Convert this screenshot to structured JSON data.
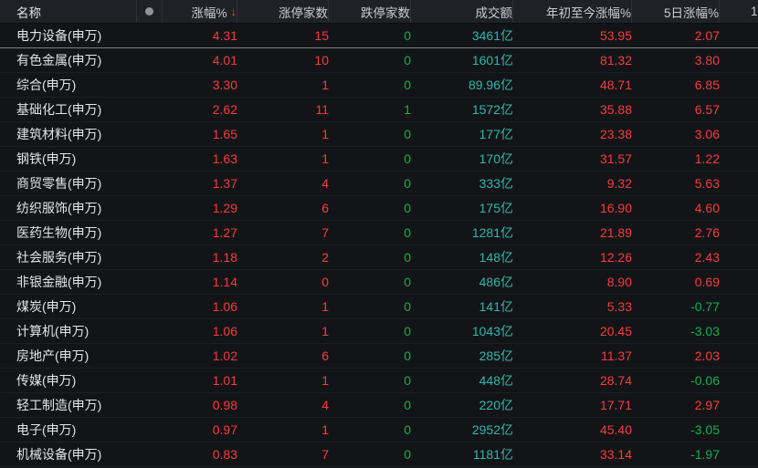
{
  "colors": {
    "up_red": "#f53c3d",
    "down_green": "#0db24d",
    "turnover_teal": "#2db8ad",
    "sort_arrow_orange": "#e0502e",
    "header_bg": "#1f2127",
    "row_bg": "#131417"
  },
  "table": {
    "columns": [
      {
        "key": "name",
        "label": "名称"
      },
      {
        "key": "dot",
        "label": ""
      },
      {
        "key": "change",
        "label": "涨幅%",
        "sort_arrow": "↓",
        "sorted": "desc"
      },
      {
        "key": "limit_up",
        "label": "涨停家数"
      },
      {
        "key": "limit_down",
        "label": "跌停家数"
      },
      {
        "key": "turnover",
        "label": "成交额"
      },
      {
        "key": "ytd",
        "label": "年初至今涨幅%"
      },
      {
        "key": "d5",
        "label": "5日涨幅%"
      },
      {
        "key": "clipped",
        "label": "1"
      }
    ],
    "rows": [
      {
        "name": "电力设备(申万)",
        "change": "4.31",
        "limit_up": "15",
        "limit_down": "0",
        "turnover": "3461亿",
        "ytd": "53.95",
        "d5": "2.07",
        "selected": true
      },
      {
        "name": "有色金属(申万)",
        "change": "4.01",
        "limit_up": "10",
        "limit_down": "0",
        "turnover": "1601亿",
        "ytd": "81.32",
        "d5": "3.80"
      },
      {
        "name": "综合(申万)",
        "change": "3.30",
        "limit_up": "1",
        "limit_down": "0",
        "turnover": "89.96亿",
        "ytd": "48.71",
        "d5": "6.85"
      },
      {
        "name": "基础化工(申万)",
        "change": "2.62",
        "limit_up": "11",
        "limit_down": "1",
        "turnover": "1572亿",
        "ytd": "35.88",
        "d5": "6.57"
      },
      {
        "name": "建筑材料(申万)",
        "change": "1.65",
        "limit_up": "1",
        "limit_down": "0",
        "turnover": "177亿",
        "ytd": "23.38",
        "d5": "3.06"
      },
      {
        "name": "钢铁(申万)",
        "change": "1.63",
        "limit_up": "1",
        "limit_down": "0",
        "turnover": "170亿",
        "ytd": "31.57",
        "d5": "1.22"
      },
      {
        "name": "商贸零售(申万)",
        "change": "1.37",
        "limit_up": "4",
        "limit_down": "0",
        "turnover": "333亿",
        "ytd": "9.32",
        "d5": "5.63"
      },
      {
        "name": "纺织服饰(申万)",
        "change": "1.29",
        "limit_up": "6",
        "limit_down": "0",
        "turnover": "175亿",
        "ytd": "16.90",
        "d5": "4.60"
      },
      {
        "name": "医药生物(申万)",
        "change": "1.27",
        "limit_up": "7",
        "limit_down": "0",
        "turnover": "1281亿",
        "ytd": "21.89",
        "d5": "2.76"
      },
      {
        "name": "社会服务(申万)",
        "change": "1.18",
        "limit_up": "2",
        "limit_down": "0",
        "turnover": "148亿",
        "ytd": "12.26",
        "d5": "2.43"
      },
      {
        "name": "非银金融(申万)",
        "change": "1.14",
        "limit_up": "0",
        "limit_down": "0",
        "turnover": "486亿",
        "ytd": "8.90",
        "d5": "0.69"
      },
      {
        "name": "煤炭(申万)",
        "change": "1.06",
        "limit_up": "1",
        "limit_down": "0",
        "turnover": "141亿",
        "ytd": "5.33",
        "d5": "-0.77"
      },
      {
        "name": "计算机(申万)",
        "change": "1.06",
        "limit_up": "1",
        "limit_down": "0",
        "turnover": "1043亿",
        "ytd": "20.45",
        "d5": "-3.03"
      },
      {
        "name": "房地产(申万)",
        "change": "1.02",
        "limit_up": "6",
        "limit_down": "0",
        "turnover": "285亿",
        "ytd": "11.37",
        "d5": "2.03"
      },
      {
        "name": "传媒(申万)",
        "change": "1.01",
        "limit_up": "1",
        "limit_down": "0",
        "turnover": "448亿",
        "ytd": "28.74",
        "d5": "-0.06"
      },
      {
        "name": "轻工制造(申万)",
        "change": "0.98",
        "limit_up": "4",
        "limit_down": "0",
        "turnover": "220亿",
        "ytd": "17.71",
        "d5": "2.97"
      },
      {
        "name": "电子(申万)",
        "change": "0.97",
        "limit_up": "1",
        "limit_down": "0",
        "turnover": "2952亿",
        "ytd": "45.40",
        "d5": "-3.05"
      },
      {
        "name": "机械设备(申万)",
        "change": "0.83",
        "limit_up": "7",
        "limit_down": "0",
        "turnover": "1181亿",
        "ytd": "33.14",
        "d5": "-1.97"
      }
    ]
  }
}
